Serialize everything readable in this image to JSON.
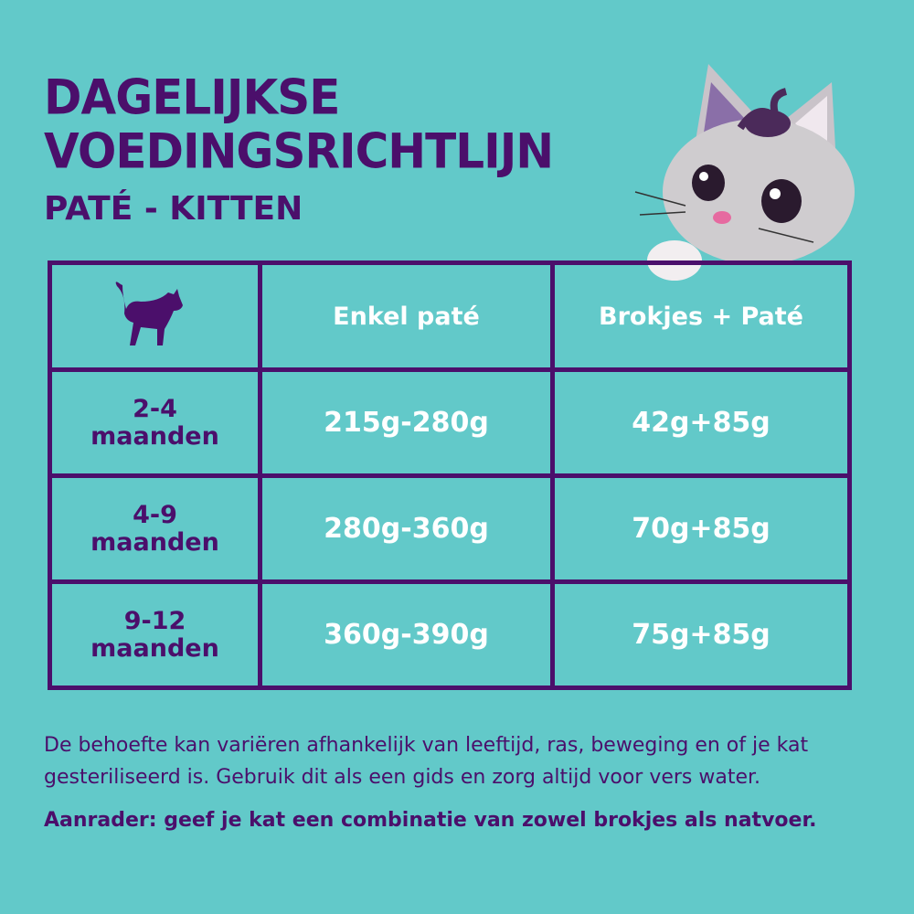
{
  "header": {
    "title_line1": "DAGELIJKSE",
    "title_line2": "VOEDINGSRICHTLIJN",
    "subtitle": "PATÉ - KITTEN"
  },
  "table": {
    "header_icon": "cat-silhouette-icon",
    "columns": [
      "Enkel paté",
      "Brokjes + Paté"
    ],
    "rows": [
      {
        "age_range": "2-4",
        "age_unit": "maanden",
        "pate_only": "215g-280g",
        "kibble_pate": "42g+85g"
      },
      {
        "age_range": "4-9",
        "age_unit": "maanden",
        "pate_only": "280g-360g",
        "kibble_pate": "70g+85g"
      },
      {
        "age_range": "9-12",
        "age_unit": "maanden",
        "pate_only": "360g-390g",
        "kibble_pate": "75g+85g"
      }
    ]
  },
  "footer": {
    "note": "De behoefte kan variëren afhankelijk van leeftijd, ras, beweging en of je kat gesteriliseerd is. Gebruik dit als een gids en zorg altijd voor vers water.",
    "recommendation": "Aanrader: geef je kat een combinatie van zowel brokjes als natvoer."
  },
  "colors": {
    "background": "#62c9c9",
    "primary": "#4b0f6b",
    "cell_text": "#ffffff"
  }
}
